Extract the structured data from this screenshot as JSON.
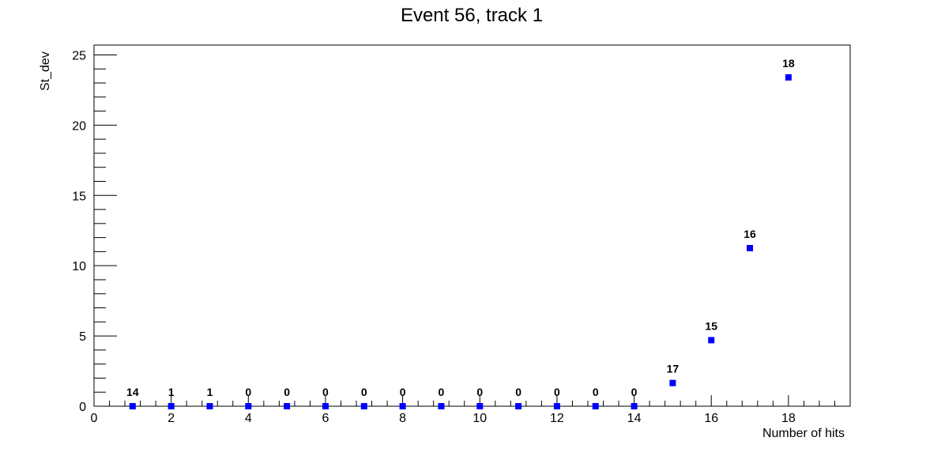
{
  "chart_data": {
    "type": "scatter",
    "title": "Event 56, track 1",
    "xlabel": "Number of hits",
    "ylabel": "St_dev",
    "xlim": [
      0,
      19.6
    ],
    "ylim": [
      0,
      25.7
    ],
    "x_ticks": [
      0,
      2,
      4,
      6,
      8,
      10,
      12,
      14,
      16,
      18
    ],
    "y_ticks": [
      0,
      5,
      10,
      15,
      20,
      25
    ],
    "grid": false,
    "legend": "none",
    "marker": "square",
    "colors": {
      "marker": "#0000ff",
      "axis": "#000000"
    },
    "points": [
      {
        "x": 1,
        "y": 0,
        "label": "14"
      },
      {
        "x": 2,
        "y": 0,
        "label": "1"
      },
      {
        "x": 3,
        "y": 0,
        "label": "1"
      },
      {
        "x": 4,
        "y": 0,
        "label": "0"
      },
      {
        "x": 5,
        "y": 0,
        "label": "0"
      },
      {
        "x": 6,
        "y": 0,
        "label": "0"
      },
      {
        "x": 7,
        "y": 0,
        "label": "0"
      },
      {
        "x": 8,
        "y": 0,
        "label": "0"
      },
      {
        "x": 9,
        "y": 0,
        "label": "0"
      },
      {
        "x": 10,
        "y": 0,
        "label": "0"
      },
      {
        "x": 11,
        "y": 0,
        "label": "0"
      },
      {
        "x": 12,
        "y": 0,
        "label": "0"
      },
      {
        "x": 13,
        "y": 0,
        "label": "0"
      },
      {
        "x": 14,
        "y": 0,
        "label": "0"
      },
      {
        "x": 15,
        "y": 1.65,
        "label": "17"
      },
      {
        "x": 16,
        "y": 4.7,
        "label": "15"
      },
      {
        "x": 17,
        "y": 11.25,
        "label": "16"
      },
      {
        "x": 18,
        "y": 23.4,
        "label": "18"
      }
    ]
  }
}
